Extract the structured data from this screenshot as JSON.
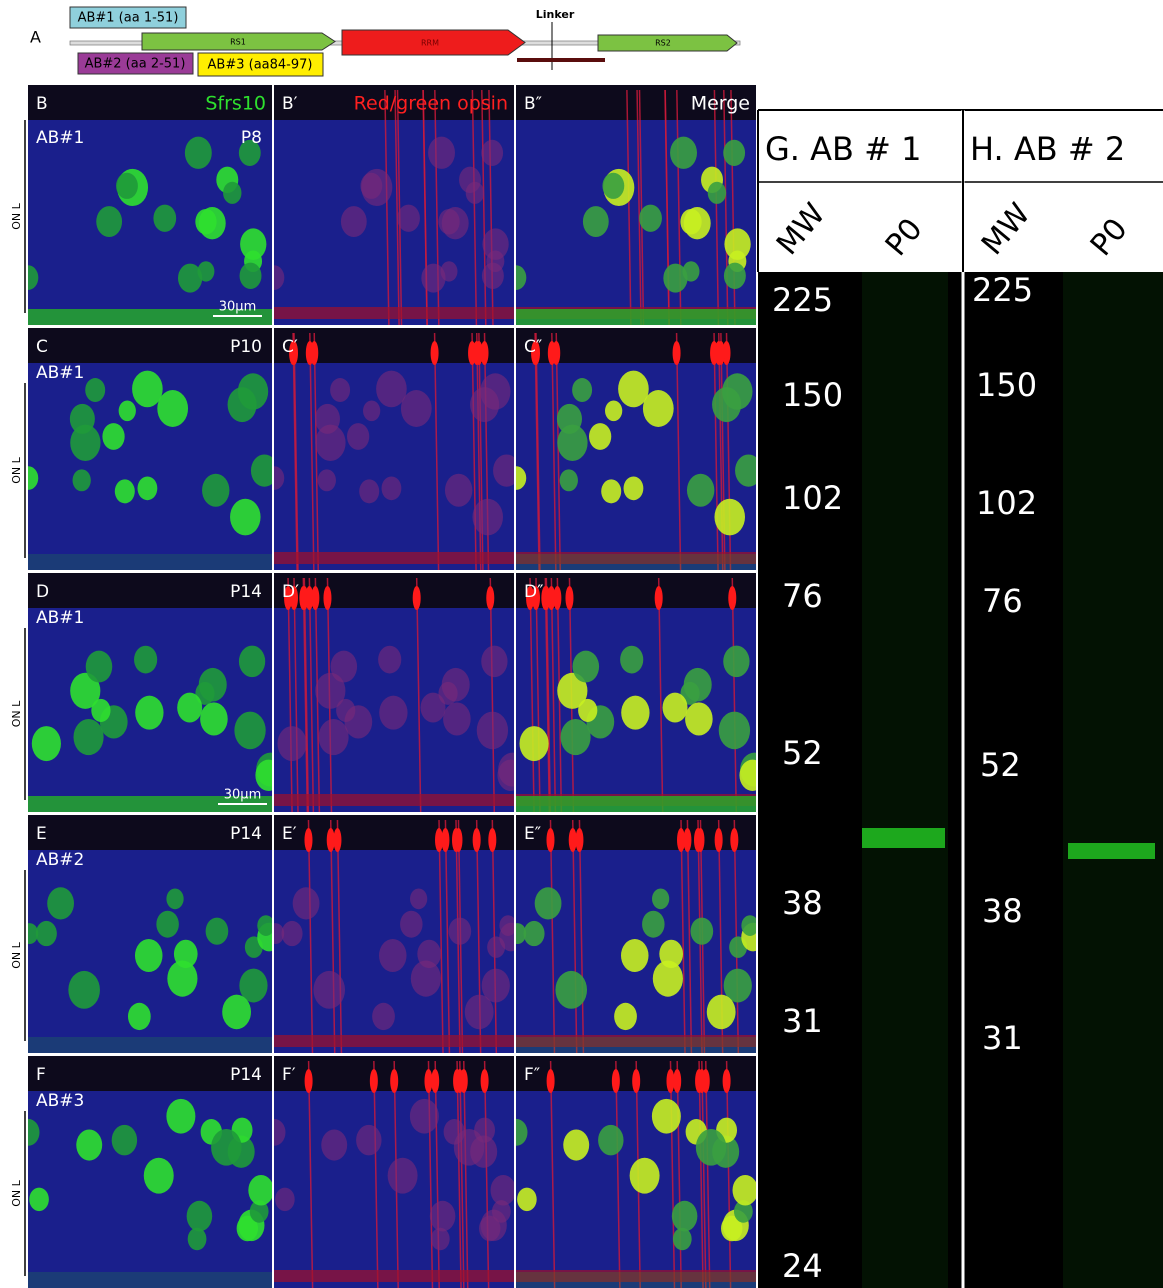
{
  "panel_a": {
    "label": "A",
    "antibodies": [
      "AB#1 (aa 1-51)",
      "AB#2 (aa 2-51)",
      "AB#3 (aa84-97)"
    ],
    "domains": [
      "RS1",
      "RRM",
      "RS2"
    ],
    "linker": "Linker"
  },
  "images": {
    "channel_titles": [
      "Sfrs10",
      "Red/green opsin",
      "Merge"
    ],
    "scale_bar": "30µm",
    "rows": [
      {
        "panels": [
          "B",
          "B′",
          "B″"
        ],
        "antibody": "AB#1",
        "age": "P8",
        "region": "ON L"
      },
      {
        "panels": [
          "C",
          "C′",
          "C″"
        ],
        "antibody": "AB#1",
        "age": "P10",
        "region": "ON L"
      },
      {
        "panels": [
          "D",
          "D′",
          "D″"
        ],
        "antibody": "AB#1",
        "age": "P14",
        "region": "ON L"
      },
      {
        "panels": [
          "E",
          "E′",
          "E″"
        ],
        "antibody": "AB#2",
        "age": "P14",
        "region": "ON L"
      },
      {
        "panels": [
          "F",
          "F′",
          "F″"
        ],
        "antibody": "AB#3",
        "age": "P14",
        "region": "ON L"
      }
    ]
  },
  "blots": [
    {
      "title": "G.  AB # 1",
      "lanes": [
        "MW",
        "P0"
      ],
      "markers": [
        "225",
        "150",
        "102",
        "76",
        "52",
        "38",
        "31",
        "24"
      ]
    },
    {
      "title": "H.  AB # 2",
      "lanes": [
        "MW",
        "P0"
      ],
      "markers": [
        "225",
        "150",
        "102",
        "76",
        "52",
        "38",
        "31"
      ]
    }
  ]
}
